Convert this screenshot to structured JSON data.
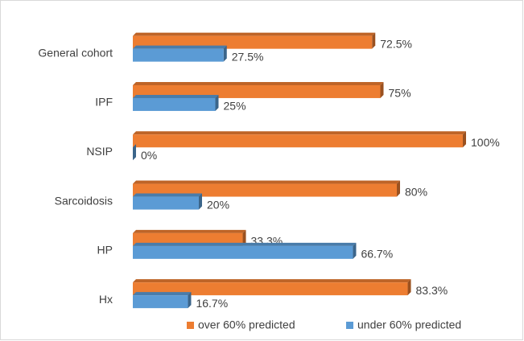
{
  "chart_data": {
    "type": "bar",
    "orientation": "horizontal",
    "categories": [
      "General cohort",
      "IPF",
      "NSIP",
      "Sarcoidosis",
      "HP",
      "Hx"
    ],
    "series": [
      {
        "name": "over 60% predicted",
        "color": "#ED7D31",
        "values": [
          72.5,
          75,
          100,
          80,
          33.3,
          83.3
        ],
        "value_labels": [
          "72.5%",
          "75%",
          "100%",
          "80%",
          "33.3%",
          "83.3%"
        ]
      },
      {
        "name": "under 60% predicted",
        "color": "#5B9BD5",
        "values": [
          27.5,
          25,
          0,
          20,
          66.7,
          16.7
        ],
        "value_labels": [
          "27.5%",
          "25%",
          "0%",
          "20%",
          "66.7%",
          "16.7%"
        ]
      }
    ],
    "legend": "bottom"
  }
}
